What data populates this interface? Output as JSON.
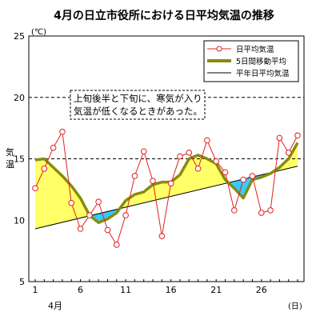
{
  "chart_data": {
    "type": "line",
    "title": "4月の日立市役所における日平均気温の推移",
    "y_unit": "(℃)",
    "ylabel": "気温",
    "ylim": [
      5,
      25
    ],
    "yticks": [
      "5",
      "10",
      "15",
      "20",
      "25"
    ],
    "dashed_gridlines": [
      15,
      20
    ],
    "xlim": [
      1,
      30
    ],
    "xticks": [
      {
        "x": 1,
        "label": "1"
      },
      {
        "x": 6,
        "label": "6"
      },
      {
        "x": 11,
        "label": "11"
      },
      {
        "x": 16,
        "label": "16"
      },
      {
        "x": 21,
        "label": "21"
      },
      {
        "x": 26,
        "label": "26"
      }
    ],
    "x_month_label": "4月",
    "x_unit": "(日)",
    "legend_position": "top-right",
    "annotation": [
      "上旬後半と下旬に、寒気が入り",
      "気温が低くなるときがあった。"
    ],
    "fill_above_color": "#FFFF66",
    "fill_below_color": "#33CCFF",
    "series": [
      {
        "name": "日平均気温",
        "kind": "line-markers",
        "color": "#E02020",
        "x": [
          1,
          2,
          3,
          4,
          5,
          6,
          7,
          8,
          9,
          10,
          11,
          12,
          13,
          14,
          15,
          16,
          17,
          18,
          19,
          20,
          21,
          22,
          23,
          24,
          25,
          26,
          27,
          28,
          29,
          30
        ],
        "values": [
          12.6,
          14.2,
          15.9,
          17.2,
          11.4,
          9.3,
          10.4,
          11.5,
          9.2,
          8.0,
          10.4,
          13.6,
          15.6,
          13.2,
          8.7,
          13.0,
          15.2,
          15.5,
          14.2,
          16.5,
          14.8,
          13.9,
          10.8,
          13.3,
          13.6,
          10.6,
          10.8,
          16.7,
          15.5,
          16.9
        ]
      },
      {
        "name": "5日間移動平均",
        "kind": "thick-line",
        "color": "#8A8A10",
        "x": [
          1,
          2,
          3,
          4,
          5,
          6,
          7,
          8,
          9,
          10,
          11,
          12,
          13,
          14,
          15,
          16,
          17,
          18,
          19,
          20,
          21,
          22,
          23,
          24,
          25,
          26,
          27,
          28,
          29,
          30
        ],
        "values": [
          14.9,
          15.0,
          14.3,
          13.6,
          12.8,
          11.8,
          10.4,
          9.8,
          10.1,
          10.6,
          11.6,
          12.1,
          12.3,
          12.9,
          13.1,
          13.1,
          13.7,
          15.0,
          15.3,
          15.0,
          14.6,
          13.3,
          12.6,
          11.8,
          13.3,
          13.5,
          13.8,
          14.3,
          15.0,
          16.3
        ]
      },
      {
        "name": "平年日平均気温",
        "kind": "line",
        "color": "#000000",
        "x": [
          1,
          30
        ],
        "values": [
          9.3,
          14.4
        ]
      }
    ]
  }
}
